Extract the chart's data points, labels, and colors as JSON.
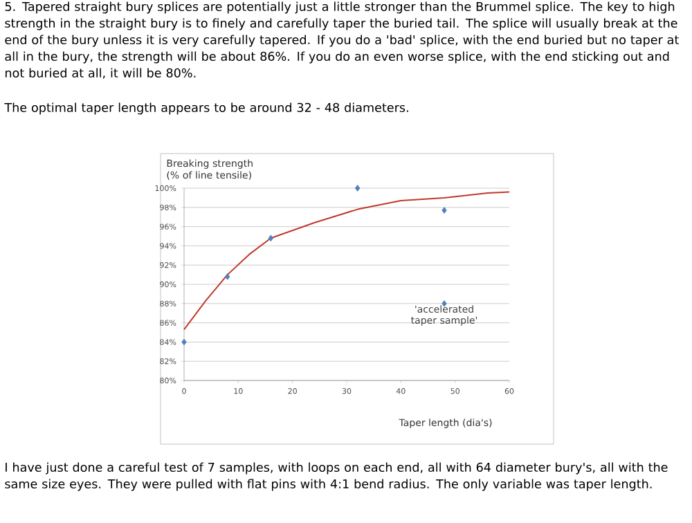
{
  "chart_data": {
    "type": "scatter",
    "xlabel": "Taper length (dia's)",
    "ylabel": "Breaking strength (% of line tensile)",
    "xlim": [
      0,
      60
    ],
    "xticks": [
      0,
      10,
      20,
      30,
      40,
      50,
      60
    ],
    "ylim": [
      80,
      100
    ],
    "yticks": [
      {
        "value": 80,
        "label": "80%"
      },
      {
        "value": 82,
        "label": "82%"
      },
      {
        "value": 84,
        "label": "84%"
      },
      {
        "value": 86,
        "label": "86%"
      },
      {
        "value": 88,
        "label": "88%"
      },
      {
        "value": 90,
        "label": "90%"
      },
      {
        "value": 92,
        "label": "92%"
      },
      {
        "value": 94,
        "label": "94%"
      },
      {
        "value": 96,
        "label": "96%"
      },
      {
        "value": 98,
        "label": "98%"
      },
      {
        "value": 100,
        "label": "100%"
      }
    ],
    "grid": "y",
    "marker": "diamond",
    "series": [
      {
        "color": "#4f81bd",
        "x": [
          0,
          8,
          16,
          32,
          48,
          48
        ],
        "values": [
          84,
          90.8,
          94.8,
          100,
          97.7,
          88
        ]
      },
      {
        "type": "line",
        "color": "#c0392b",
        "marker": "none",
        "x": [
          0,
          4,
          8,
          12,
          16,
          24,
          32,
          40,
          48,
          56,
          60
        ],
        "values": [
          85.3,
          88.3,
          91.0,
          93.1,
          94.8,
          96.4,
          97.8,
          98.7,
          99.0,
          99.5,
          99.6
        ]
      }
    ],
    "annotations": [
      "5. Tapered straight bury splices are potentially just a little stronger than the Brummel splice. The key to high strength in the straight bury is to finely and carefully taper the buried tail. The splice will usually break at the end of the bury unless it is very carefully tapered. If you do a 'bad' splice, with the end buried but no taper at all in the bury, the strength will be about 86%. If you do an even worse splice, with the end sticking out and not buried at all, it will be 80%.",
      "The optimal taper length appears to be around 32 - 48 diameters.",
      "I have just done a careful test of 7 samples, with loops on each end, all with 64 diameter bury's, all with the same size eyes. They were pulled with flat pins with 4:1 bend radius. The only variable was taper length.",
      {
        "text": "'accelerated taper sample'",
        "x": 48,
        "y": 88
      }
    ]
  }
}
